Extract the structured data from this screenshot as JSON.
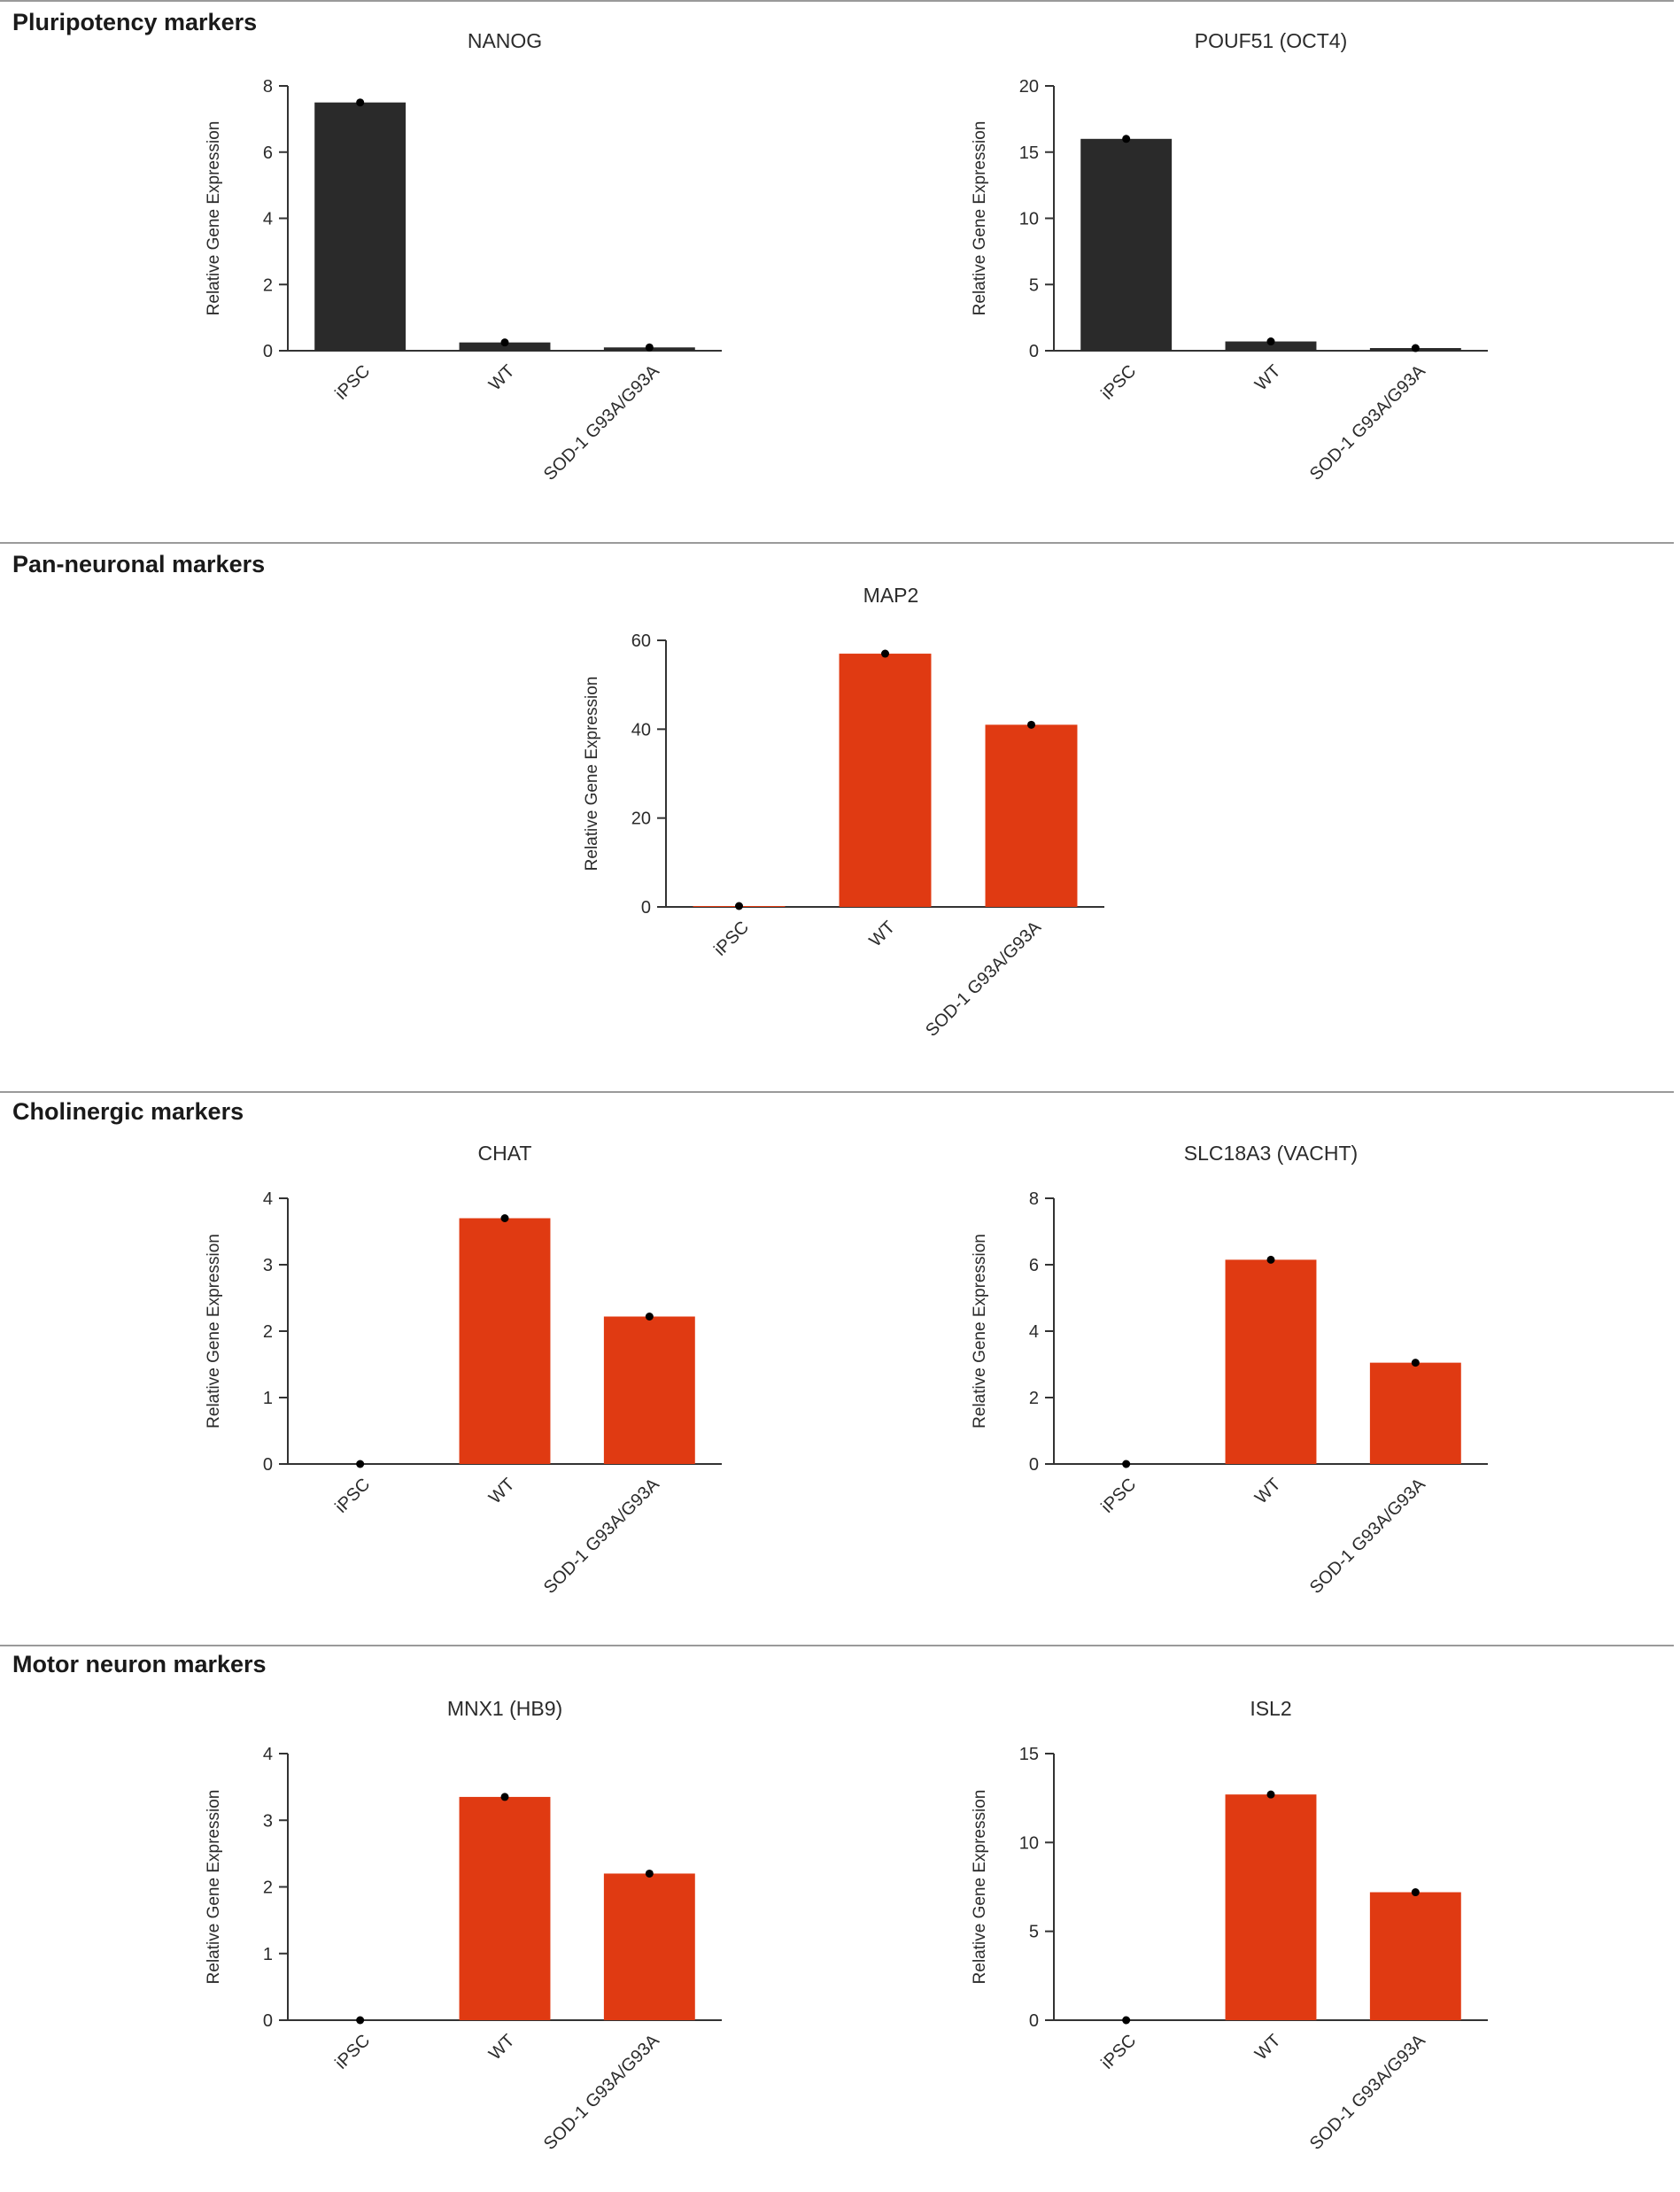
{
  "colors": {
    "dark": "#2a2a2a",
    "red": "#e03a12"
  },
  "sections": [
    {
      "title": "Pluripotency markers"
    },
    {
      "title": "Pan-neuronal markers"
    },
    {
      "title": "Cholinergic markers"
    },
    {
      "title": "Motor neuron markers"
    }
  ],
  "chart_data": [
    {
      "type": "bar",
      "section": "Pluripotency markers",
      "title": "NANOG",
      "ylabel": "Relative Gene Expression",
      "categories": [
        "iPSC",
        "WT",
        "SOD-1 G93A/G93A"
      ],
      "values": [
        7.5,
        0.25,
        0.1
      ],
      "ylim": [
        0,
        8
      ],
      "yticks": [
        "0",
        "2",
        "4",
        "6",
        "8"
      ],
      "color": "dark"
    },
    {
      "type": "bar",
      "section": "Pluripotency markers",
      "title": "POUF51 (OCT4)",
      "ylabel": "Relative Gene Expression",
      "categories": [
        "iPSC",
        "WT",
        "SOD-1 G93A/G93A"
      ],
      "values": [
        16,
        0.7,
        0.2
      ],
      "ylim": [
        0,
        20
      ],
      "yticks": [
        "0",
        "5",
        "10",
        "15",
        "20"
      ],
      "color": "dark"
    },
    {
      "type": "bar",
      "section": "Pan-neuronal markers",
      "title": "MAP2",
      "ylabel": "Relative Gene Expression",
      "categories": [
        "iPSC",
        "WT",
        "SOD-1 G93A/G93A"
      ],
      "values": [
        0.2,
        57,
        41
      ],
      "ylim": [
        0,
        60
      ],
      "yticks": [
        "0",
        "20",
        "40",
        "60"
      ],
      "color": "red"
    },
    {
      "type": "bar",
      "section": "Cholinergic markers",
      "title": "CHAT",
      "ylabel": "Relative Gene Expression",
      "categories": [
        "iPSC",
        "WT",
        "SOD-1 G93A/G93A"
      ],
      "values": [
        0,
        3.7,
        2.22
      ],
      "ylim": [
        0,
        4
      ],
      "yticks": [
        "0",
        "1",
        "2",
        "3",
        "4"
      ],
      "color": "red"
    },
    {
      "type": "bar",
      "section": "Cholinergic markers",
      "title": "SLC18A3 (VACHT)",
      "ylabel": "Relative Gene Expression",
      "categories": [
        "iPSC",
        "WT",
        "SOD-1 G93A/G93A"
      ],
      "values": [
        0,
        6.15,
        3.05
      ],
      "ylim": [
        0,
        8
      ],
      "yticks": [
        "0",
        "2",
        "4",
        "6",
        "8"
      ],
      "color": "red"
    },
    {
      "type": "bar",
      "section": "Motor neuron markers",
      "title": "MNX1 (HB9)",
      "ylabel": "Relative Gene Expression",
      "categories": [
        "iPSC",
        "WT",
        "SOD-1 G93A/G93A"
      ],
      "values": [
        0,
        3.35,
        2.2
      ],
      "ylim": [
        0,
        4
      ],
      "yticks": [
        "0",
        "1",
        "2",
        "3",
        "4"
      ],
      "color": "red"
    },
    {
      "type": "bar",
      "section": "Motor neuron markers",
      "title": "ISL2",
      "ylabel": "Relative Gene Expression",
      "categories": [
        "iPSC",
        "WT",
        "SOD-1 G93A/G93A"
      ],
      "values": [
        0,
        12.7,
        7.2
      ],
      "ylim": [
        0,
        15
      ],
      "yticks": [
        "0",
        "5",
        "10",
        "15"
      ],
      "color": "red"
    }
  ]
}
